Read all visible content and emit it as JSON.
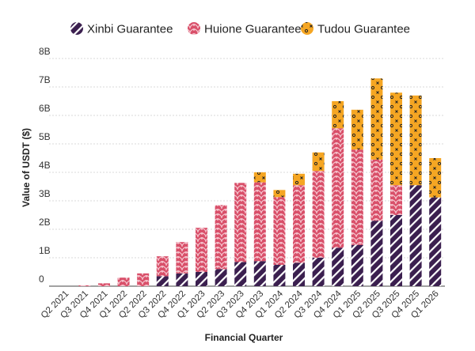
{
  "chart_data": {
    "type": "bar",
    "stacked": true,
    "title": "",
    "xlabel": "Financial Quarter",
    "ylabel": "Value of USDT ($)",
    "ylim": [
      0,
      8
    ],
    "yticks": [
      0,
      1,
      2,
      3,
      4,
      5,
      6,
      7,
      8
    ],
    "ytick_labels": [
      "0",
      "1B",
      "2B",
      "3B",
      "4B",
      "5B",
      "6B",
      "7B",
      "8B"
    ],
    "grid": true,
    "legend_position": "top",
    "categories": [
      "Q2 2021",
      "Q3 2021",
      "Q4 2021",
      "Q1 2022",
      "Q2 2022",
      "Q3 2022",
      "Q4 2022",
      "Q1 2023",
      "Q2 2023",
      "Q3 2023",
      "Q4 2023",
      "Q1 2024",
      "Q2 2024",
      "Q3 2024",
      "Q4 2024",
      "Q1 2025",
      "Q2 2025",
      "Q3 2025",
      "Q4 2025",
      "Q1 2026"
    ],
    "series": [
      {
        "name": "Xinbi Guarantee",
        "color": "#3b1f4f",
        "pattern": "diagonal-stripes",
        "values": [
          0,
          0,
          0,
          0,
          0,
          0.35,
          0.45,
          0.5,
          0.6,
          0.85,
          0.88,
          0.75,
          0.82,
          1.0,
          1.35,
          1.45,
          2.3,
          2.5,
          3.55,
          3.12
        ]
      },
      {
        "name": "Huione Guarantee",
        "color": "#d9506a",
        "pattern": "scales",
        "values": [
          0,
          0.03,
          0.1,
          0.3,
          0.45,
          0.7,
          1.1,
          1.55,
          2.25,
          2.78,
          2.77,
          2.38,
          2.73,
          3.05,
          4.2,
          3.35,
          2.15,
          1.05,
          0,
          0
        ]
      },
      {
        "name": "Tudou Guarantee",
        "color": "#f5a623",
        "pattern": "dots-and-crosses",
        "values": [
          0,
          0,
          0,
          0,
          0,
          0,
          0,
          0,
          0,
          0,
          0.35,
          0.25,
          0.4,
          0.65,
          0.95,
          1.4,
          2.85,
          3.25,
          3.15,
          1.38
        ]
      }
    ]
  }
}
